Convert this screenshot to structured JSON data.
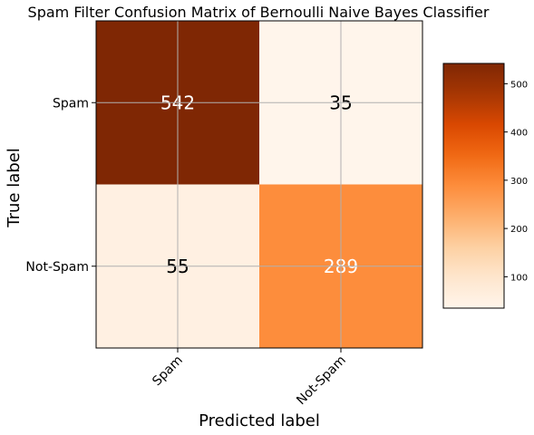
{
  "chart_data": {
    "type": "heatmap",
    "title": "Spam Filter Confusion Matrix of Bernoulli Naive Bayes Classifier",
    "xlabel": "Predicted label",
    "ylabel": "True label",
    "x_categories": [
      "Spam",
      "Not-Spam"
    ],
    "y_categories": [
      "Spam",
      "Not-Spam"
    ],
    "matrix": [
      [
        542,
        35
      ],
      [
        55,
        289
      ]
    ],
    "colormap": "Oranges",
    "color_range": [
      35,
      542
    ],
    "colorbar_ticks": [
      100,
      200,
      300,
      400,
      500
    ],
    "grid": true,
    "text_colors": {
      "dark_cell": "#ffffff",
      "light_cell": "#000000"
    }
  }
}
